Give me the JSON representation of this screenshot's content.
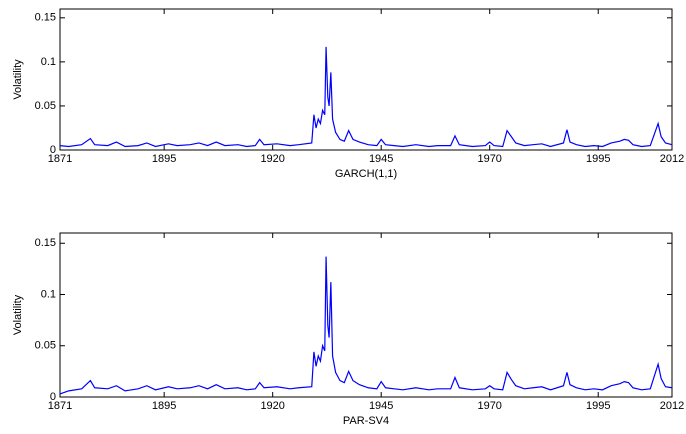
{
  "chart_data": [
    {
      "type": "line",
      "xlabel": "GARCH(1,1)",
      "ylabel": "Volatility",
      "xlim": [
        1871,
        2012
      ],
      "xticks": [
        1871,
        1895,
        1920,
        1945,
        1970,
        1995,
        2012
      ],
      "ylim": [
        0,
        0.16
      ],
      "yticks": [
        0,
        0.05,
        0.1,
        0.15
      ],
      "x": [
        1871,
        1873,
        1876,
        1878,
        1879,
        1882,
        1884,
        1886,
        1889,
        1891,
        1893,
        1896,
        1898,
        1901,
        1903,
        1905,
        1907,
        1909,
        1912,
        1914,
        1916,
        1917,
        1918,
        1921,
        1924,
        1926,
        1929,
        1929.5,
        1930,
        1930.5,
        1931,
        1931.5,
        1932,
        1932.3,
        1932.7,
        1933,
        1933.4,
        1933.8,
        1934.5,
        1935.5,
        1936.5,
        1937.5,
        1938.5,
        1940,
        1942,
        1944,
        1945,
        1946,
        1948,
        1950,
        1953,
        1956,
        1958,
        1961,
        1962,
        1963,
        1966,
        1969,
        1970,
        1971,
        1973,
        1974,
        1975,
        1976,
        1978,
        1980,
        1982,
        1984,
        1987,
        1987.8,
        1988.5,
        1990,
        1992,
        1994,
        1996,
        1998,
        2000,
        2001,
        2002,
        2003,
        2005,
        2007,
        2008.8,
        2009.5,
        2010.5,
        2012
      ],
      "series": [
        {
          "color": "#0000ff",
          "values": [
            0.005,
            0.004,
            0.006,
            0.013,
            0.006,
            0.005,
            0.009,
            0.004,
            0.005,
            0.008,
            0.004,
            0.007,
            0.005,
            0.006,
            0.008,
            0.005,
            0.009,
            0.005,
            0.006,
            0.004,
            0.005,
            0.012,
            0.006,
            0.007,
            0.005,
            0.006,
            0.008,
            0.04,
            0.025,
            0.035,
            0.03,
            0.045,
            0.04,
            0.117,
            0.06,
            0.05,
            0.088,
            0.035,
            0.02,
            0.012,
            0.01,
            0.022,
            0.012,
            0.009,
            0.006,
            0.005,
            0.012,
            0.006,
            0.005,
            0.004,
            0.006,
            0.004,
            0.005,
            0.005,
            0.016,
            0.006,
            0.004,
            0.005,
            0.009,
            0.005,
            0.004,
            0.022,
            0.015,
            0.008,
            0.005,
            0.006,
            0.007,
            0.004,
            0.008,
            0.023,
            0.009,
            0.006,
            0.004,
            0.005,
            0.004,
            0.008,
            0.01,
            0.012,
            0.011,
            0.006,
            0.004,
            0.005,
            0.03,
            0.015,
            0.008,
            0.006
          ]
        }
      ]
    },
    {
      "type": "line",
      "xlabel": "PAR-SV4",
      "ylabel": "Volatility",
      "xlim": [
        1871,
        2012
      ],
      "xticks": [
        1871,
        1895,
        1920,
        1945,
        1970,
        1995,
        2012
      ],
      "ylim": [
        0,
        0.16
      ],
      "yticks": [
        0,
        0.05,
        0.1,
        0.15
      ],
      "x": [
        1871,
        1873,
        1876,
        1878,
        1879,
        1882,
        1884,
        1886,
        1889,
        1891,
        1893,
        1896,
        1898,
        1901,
        1903,
        1905,
        1907,
        1909,
        1912,
        1914,
        1916,
        1917,
        1918,
        1921,
        1924,
        1926,
        1929,
        1929.5,
        1930,
        1930.5,
        1931,
        1931.5,
        1932,
        1932.3,
        1932.7,
        1933,
        1933.4,
        1933.8,
        1934.5,
        1935.5,
        1936.5,
        1937.5,
        1938.5,
        1940,
        1942,
        1944,
        1945,
        1946,
        1948,
        1950,
        1953,
        1956,
        1958,
        1961,
        1962,
        1963,
        1966,
        1969,
        1970,
        1971,
        1973,
        1974,
        1975,
        1976,
        1978,
        1980,
        1982,
        1984,
        1987,
        1987.8,
        1988.5,
        1990,
        1992,
        1994,
        1996,
        1998,
        2000,
        2001,
        2002,
        2003,
        2005,
        2007,
        2008.8,
        2009.5,
        2010.5,
        2012
      ],
      "series": [
        {
          "color": "#0000ff",
          "values": [
            0.003,
            0.006,
            0.008,
            0.016,
            0.009,
            0.008,
            0.011,
            0.006,
            0.008,
            0.011,
            0.007,
            0.01,
            0.008,
            0.009,
            0.011,
            0.008,
            0.012,
            0.008,
            0.009,
            0.007,
            0.008,
            0.014,
            0.009,
            0.01,
            0.008,
            0.009,
            0.01,
            0.044,
            0.03,
            0.04,
            0.035,
            0.05,
            0.045,
            0.137,
            0.07,
            0.058,
            0.112,
            0.04,
            0.024,
            0.016,
            0.014,
            0.025,
            0.016,
            0.012,
            0.009,
            0.008,
            0.015,
            0.009,
            0.008,
            0.007,
            0.009,
            0.007,
            0.008,
            0.008,
            0.019,
            0.009,
            0.007,
            0.008,
            0.011,
            0.008,
            0.007,
            0.024,
            0.017,
            0.011,
            0.008,
            0.009,
            0.01,
            0.007,
            0.011,
            0.024,
            0.012,
            0.009,
            0.007,
            0.008,
            0.007,
            0.011,
            0.013,
            0.015,
            0.014,
            0.009,
            0.007,
            0.008,
            0.032,
            0.018,
            0.01,
            0.009
          ]
        }
      ]
    }
  ]
}
